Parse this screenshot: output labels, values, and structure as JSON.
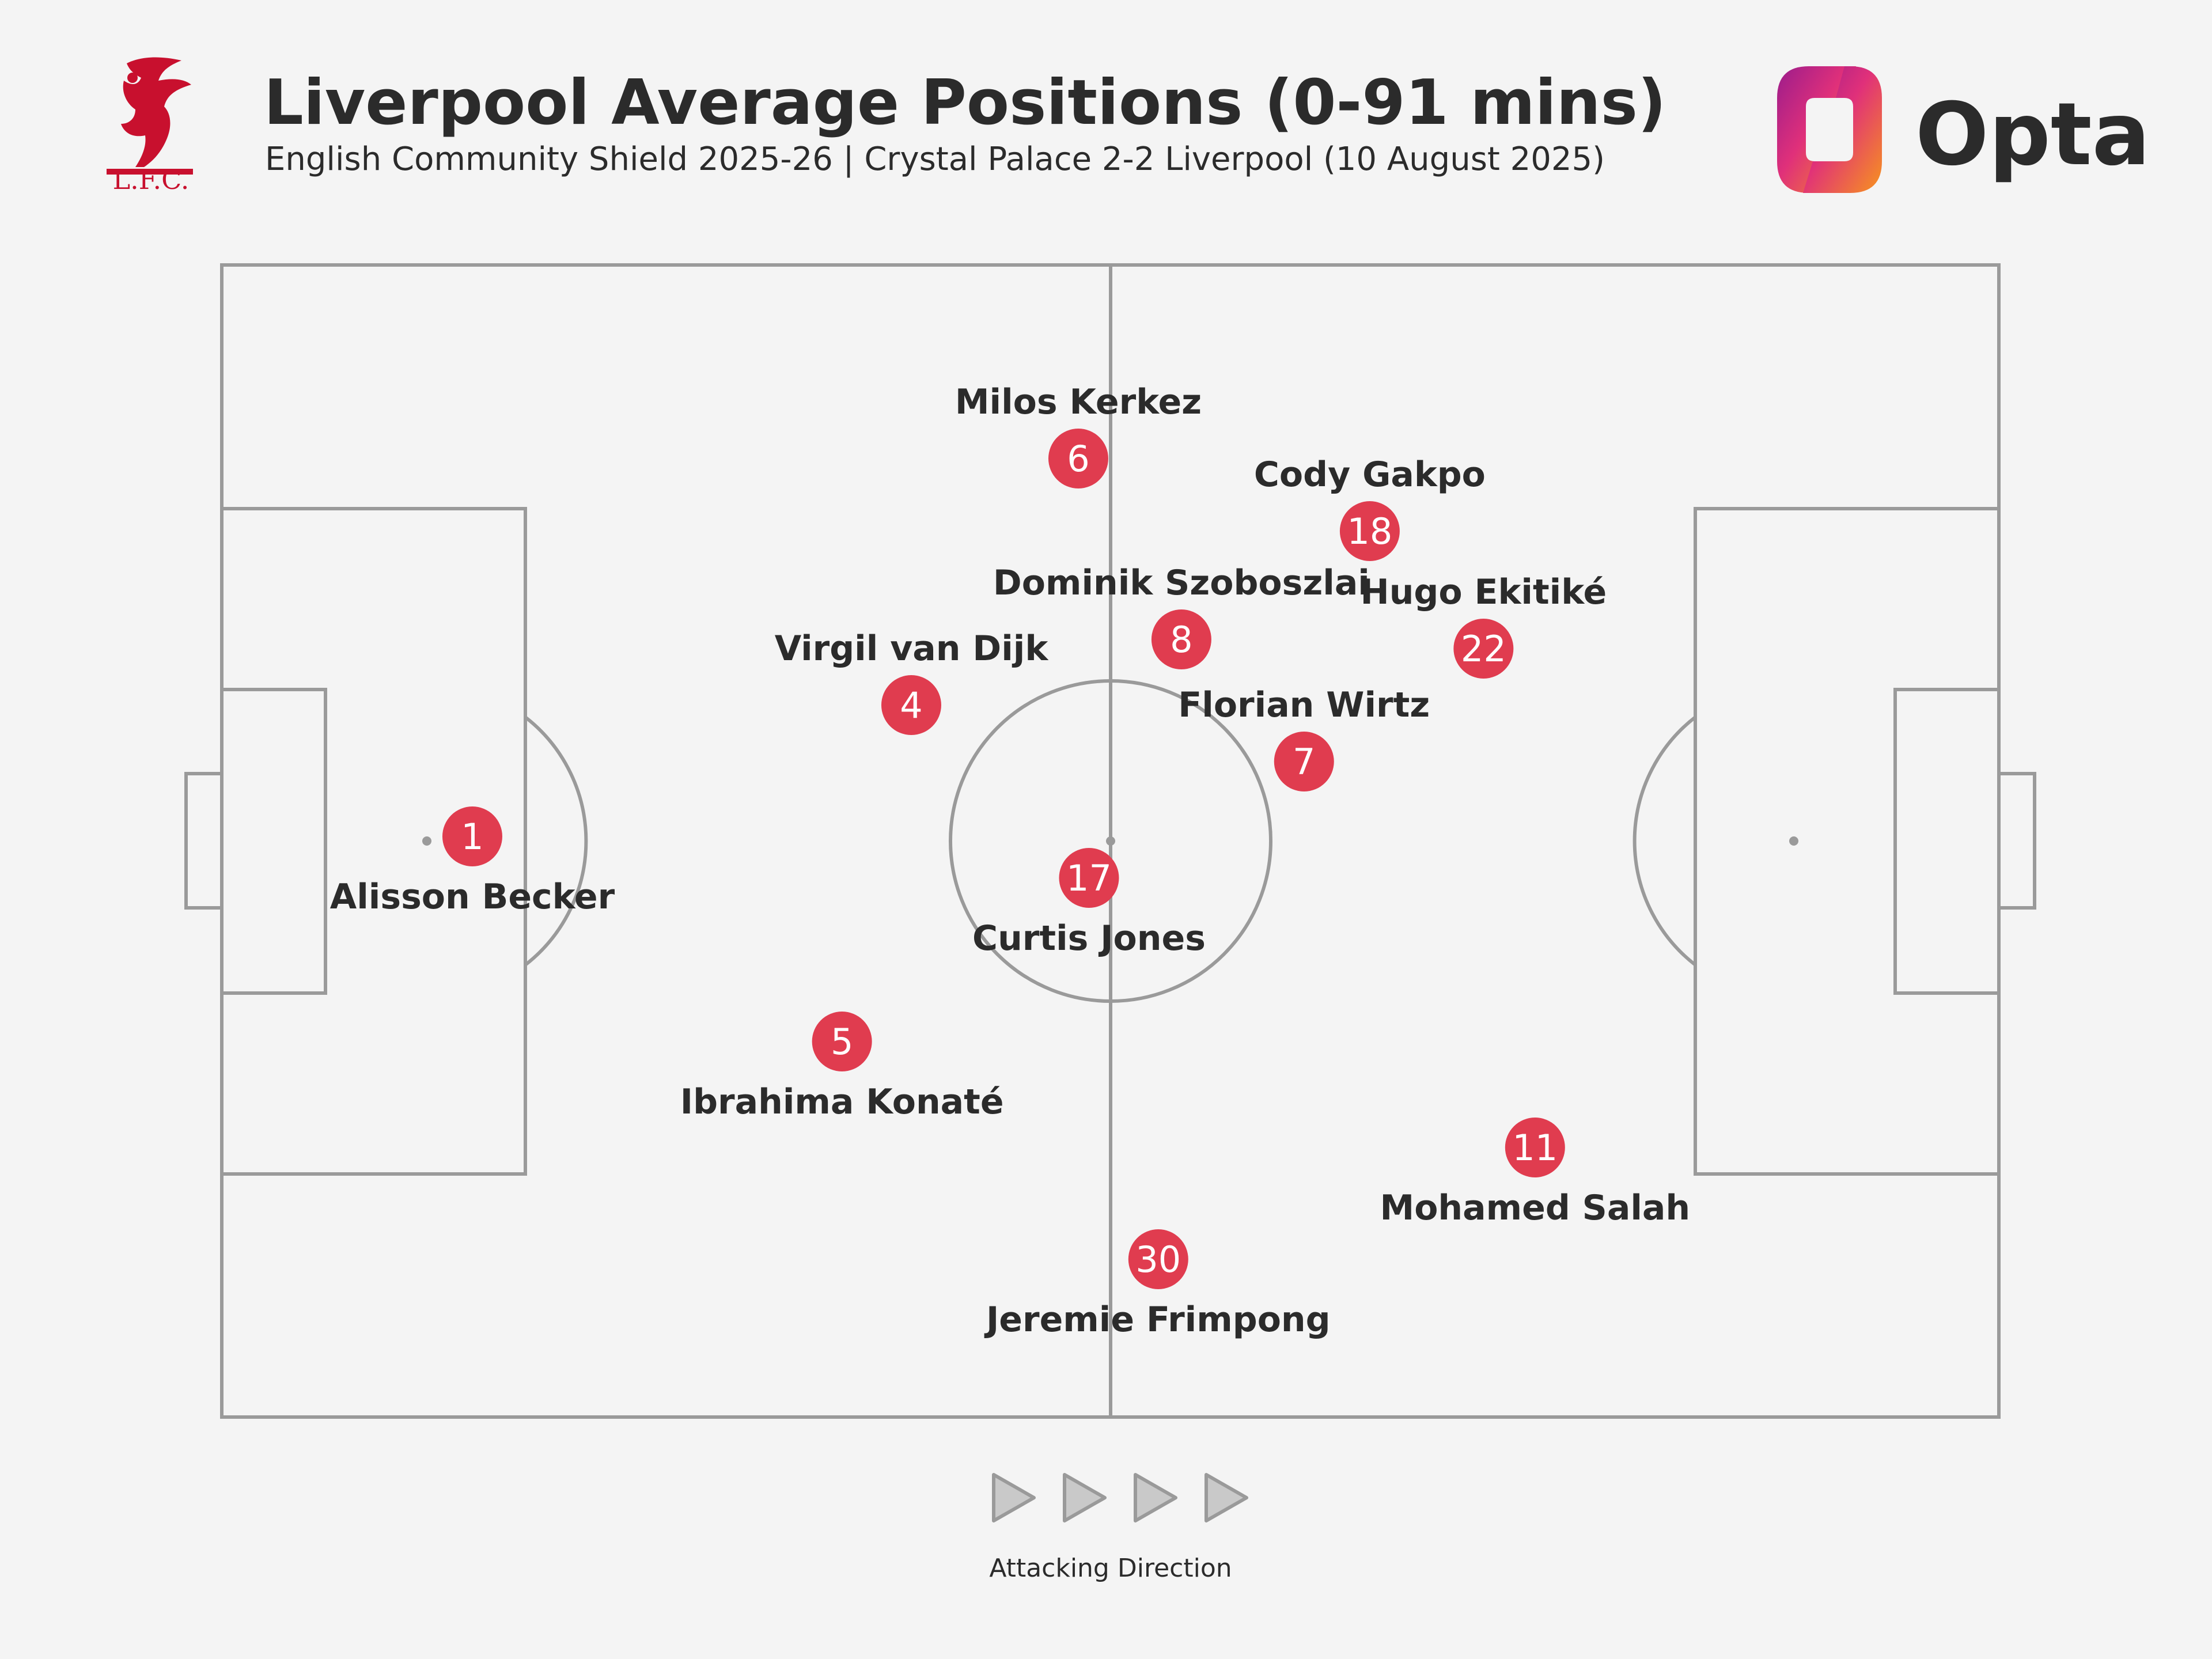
{
  "header": {
    "title": "Liverpool Average Positions (0-91 mins)",
    "subtitle": "English Community Shield 2025-26 | Crystal Palace 2-2 Liverpool (10 August 2025)",
    "club_badge_text": "L.F.C.",
    "brand": "Opta"
  },
  "footer": {
    "direction_label": "Attacking Direction"
  },
  "colors": {
    "marker": "#e03c4f",
    "pitch_lines": "#9a9a9a",
    "background": "#f4f4f4",
    "text": "#2b2b2b",
    "club_red": "#c8102e"
  },
  "chart_data": {
    "type": "scatter",
    "pitch": {
      "length": 100,
      "width": 100,
      "attacking_direction": "left-to-right"
    },
    "players": [
      {
        "number": "1",
        "name": "Alisson Becker",
        "x": 14.1,
        "y": 49.6,
        "label": "below"
      },
      {
        "number": "4",
        "name": "Virgil van Dijk",
        "x": 38.8,
        "y": 38.2,
        "label": "above"
      },
      {
        "number": "5",
        "name": "Ibrahima Konaté",
        "x": 34.9,
        "y": 67.4,
        "label": "below"
      },
      {
        "number": "6",
        "name": "Milos Kerkez",
        "x": 48.2,
        "y": 16.8,
        "label": "above"
      },
      {
        "number": "8",
        "name": "Dominik Szoboszlai",
        "x": 54.0,
        "y": 32.5,
        "label": "above"
      },
      {
        "number": "18",
        "name": "Cody Gakpo",
        "x": 64.6,
        "y": 23.1,
        "label": "above"
      },
      {
        "number": "22",
        "name": "Hugo Ekitiké",
        "x": 71.0,
        "y": 33.3,
        "label": "above"
      },
      {
        "number": "7",
        "name": "Florian Wirtz",
        "x": 60.9,
        "y": 43.1,
        "label": "above"
      },
      {
        "number": "17",
        "name": "Curtis Jones",
        "x": 48.8,
        "y": 53.2,
        "label": "below"
      },
      {
        "number": "11",
        "name": "Mohamed Salah",
        "x": 73.9,
        "y": 76.6,
        "label": "below"
      },
      {
        "number": "30",
        "name": "Jeremie Frimpong",
        "x": 52.7,
        "y": 86.3,
        "label": "below"
      }
    ]
  }
}
